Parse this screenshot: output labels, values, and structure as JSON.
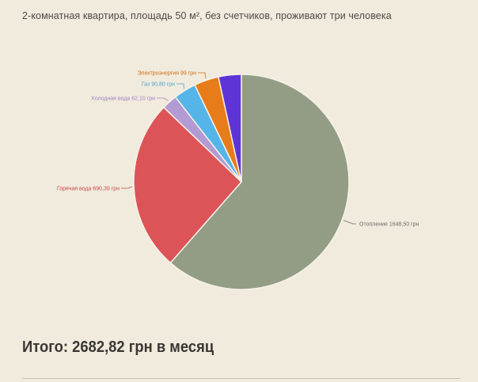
{
  "chart_data": {
    "type": "pie",
    "title": "2-комнатная квартира,  площадь 50 м², без счетчиков, проживают три человека",
    "slices": [
      {
        "label": "Отопление 1648,50 грн",
        "value": 1648.5,
        "color": "#939d86",
        "label_color": "#6b6a63"
      },
      {
        "label": "Горячая вода 690,39 грн",
        "value": 690.39,
        "color": "#dc5457",
        "label_color": "#c84a4d"
      },
      {
        "label": "Холодная вода 62,10 грн",
        "value": 62.1,
        "color": "#b29ad3",
        "label_color": "#9e86c2"
      },
      {
        "label": "Газ 90,80 грн",
        "value": 90.8,
        "color": "#56b5e8",
        "label_color": "#4aa3d4"
      },
      {
        "label": "Электроэнергия 99 грн",
        "value": 99.0,
        "color": "#e77c1b",
        "label_color": "#d16d12"
      },
      {
        "label": "",
        "value": 92.03,
        "color": "#5e34d6",
        "label_color": "#5e34d6"
      }
    ]
  },
  "footer": {
    "total_text": "Итого: 2682,82 грн в месяц"
  }
}
